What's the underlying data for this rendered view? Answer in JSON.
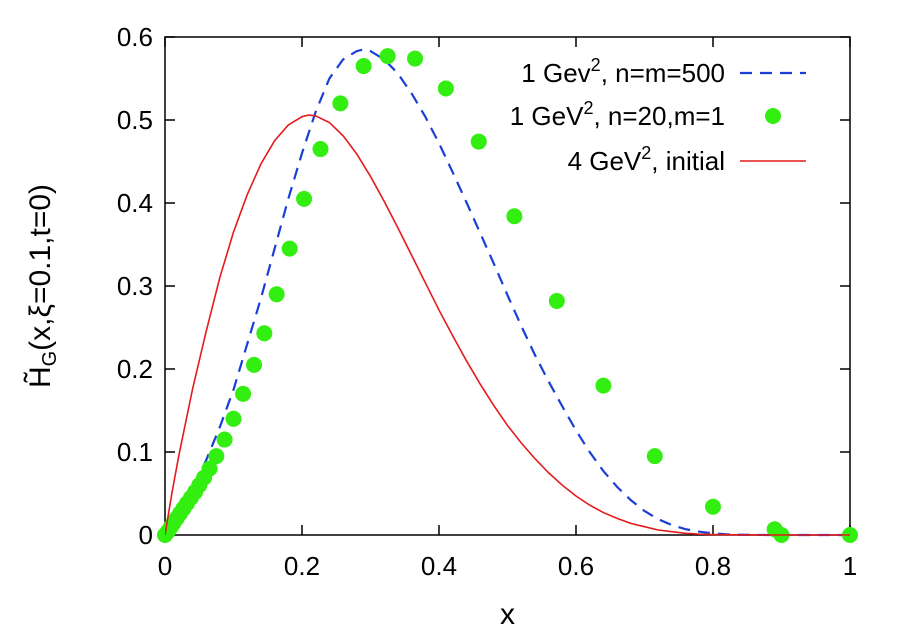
{
  "chart_data": {
    "type": "line",
    "title": "",
    "xlabel": "x",
    "ylabel": "H̃G(x,ξ=0.1,t=0)",
    "ylabel_parts": {
      "main": "H̃",
      "sub": "G",
      "rest": "(x,ξ=0.1,t=0)"
    },
    "xlim": [
      0,
      1
    ],
    "ylim": [
      0,
      0.6
    ],
    "xticks": [
      "0",
      "0.2",
      "0.4",
      "0.6",
      "0.8",
      "1"
    ],
    "yticks": [
      "0",
      "0.1",
      "0.2",
      "0.3",
      "0.4",
      "0.5",
      "0.6"
    ],
    "xtick_values": [
      0,
      0.2,
      0.4,
      0.6,
      0.8,
      1
    ],
    "ytick_values": [
      0,
      0.1,
      0.2,
      0.3,
      0.4,
      0.5,
      0.6
    ],
    "grid": false,
    "legend_position": "top-right",
    "series": [
      {
        "name": "1 Gev², n=m=500",
        "label_base": "1 Gev",
        "label_sup": "2",
        "label_rest": ", n=m=500",
        "style": "dashed",
        "color": "#1a3fd6",
        "x": [
          0,
          0.02,
          0.04,
          0.06,
          0.08,
          0.1,
          0.12,
          0.14,
          0.16,
          0.18,
          0.2,
          0.22,
          0.24,
          0.26,
          0.28,
          0.29,
          0.3,
          0.32,
          0.34,
          0.36,
          0.38,
          0.4,
          0.42,
          0.44,
          0.46,
          0.48,
          0.5,
          0.52,
          0.54,
          0.56,
          0.58,
          0.6,
          0.62,
          0.64,
          0.66,
          0.68,
          0.7,
          0.72,
          0.74,
          0.76,
          0.78,
          0.8,
          0.82,
          0.84,
          0.86,
          0.88,
          0.9,
          0.95,
          1.0
        ],
        "y": [
          0,
          0.025,
          0.055,
          0.09,
          0.13,
          0.175,
          0.23,
          0.285,
          0.345,
          0.405,
          0.46,
          0.51,
          0.55,
          0.573,
          0.583,
          0.585,
          0.583,
          0.573,
          0.556,
          0.532,
          0.504,
          0.472,
          0.437,
          0.401,
          0.364,
          0.327,
          0.289,
          0.252,
          0.217,
          0.185,
          0.155,
          0.126,
          0.1,
          0.077,
          0.058,
          0.042,
          0.029,
          0.019,
          0.012,
          0.007,
          0.004,
          0.002,
          0.0008,
          0.0003,
          0.0001,
          3e-05,
          0,
          0,
          0
        ]
      },
      {
        "name": "1 GeV², n=20,m=1",
        "label_base": "1 GeV",
        "label_sup": "2",
        "label_rest": ", n=20,m=1",
        "style": "markers",
        "color": "#33ee11",
        "x": [
          0.0,
          0.004,
          0.008,
          0.012,
          0.017,
          0.022,
          0.027,
          0.032,
          0.038,
          0.044,
          0.05,
          0.057,
          0.065,
          0.075,
          0.087,
          0.1,
          0.114,
          0.13,
          0.145,
          0.163,
          0.182,
          0.203,
          0.227,
          0.256,
          0.29,
          0.325,
          0.365,
          0.41,
          0.458,
          0.51,
          0.572,
          0.64,
          0.715,
          0.8,
          0.89,
          0.9,
          1.0
        ],
        "y": [
          0.0,
          0.004,
          0.009,
          0.014,
          0.02,
          0.026,
          0.032,
          0.038,
          0.045,
          0.052,
          0.06,
          0.069,
          0.08,
          0.095,
          0.115,
          0.14,
          0.17,
          0.205,
          0.243,
          0.29,
          0.345,
          0.405,
          0.465,
          0.52,
          0.565,
          0.577,
          0.574,
          0.538,
          0.474,
          0.384,
          0.282,
          0.18,
          0.095,
          0.034,
          0.007,
          0.0,
          0.0
        ]
      },
      {
        "name": "4 GeV², initial",
        "label_base": "4 GeV",
        "label_sup": "2",
        "label_rest": ", initial",
        "style": "solid",
        "color": "#e41a1c",
        "x": [
          0,
          0.01,
          0.02,
          0.04,
          0.06,
          0.08,
          0.1,
          0.12,
          0.14,
          0.16,
          0.18,
          0.2,
          0.21,
          0.22,
          0.24,
          0.26,
          0.28,
          0.3,
          0.32,
          0.34,
          0.36,
          0.38,
          0.4,
          0.42,
          0.44,
          0.46,
          0.48,
          0.5,
          0.52,
          0.54,
          0.56,
          0.58,
          0.6,
          0.62,
          0.64,
          0.66,
          0.68,
          0.7,
          0.72,
          0.74,
          0.76,
          0.78,
          0.8,
          0.85,
          0.9,
          1.0
        ],
        "y": [
          0,
          0.05,
          0.095,
          0.175,
          0.245,
          0.31,
          0.365,
          0.41,
          0.447,
          0.475,
          0.494,
          0.504,
          0.506,
          0.505,
          0.497,
          0.481,
          0.459,
          0.432,
          0.402,
          0.37,
          0.337,
          0.304,
          0.271,
          0.24,
          0.21,
          0.182,
          0.156,
          0.132,
          0.111,
          0.092,
          0.075,
          0.06,
          0.047,
          0.036,
          0.027,
          0.02,
          0.014,
          0.01,
          0.006,
          0.004,
          0.002,
          0.001,
          0.0005,
          0.0001,
          0,
          0
        ]
      }
    ]
  }
}
